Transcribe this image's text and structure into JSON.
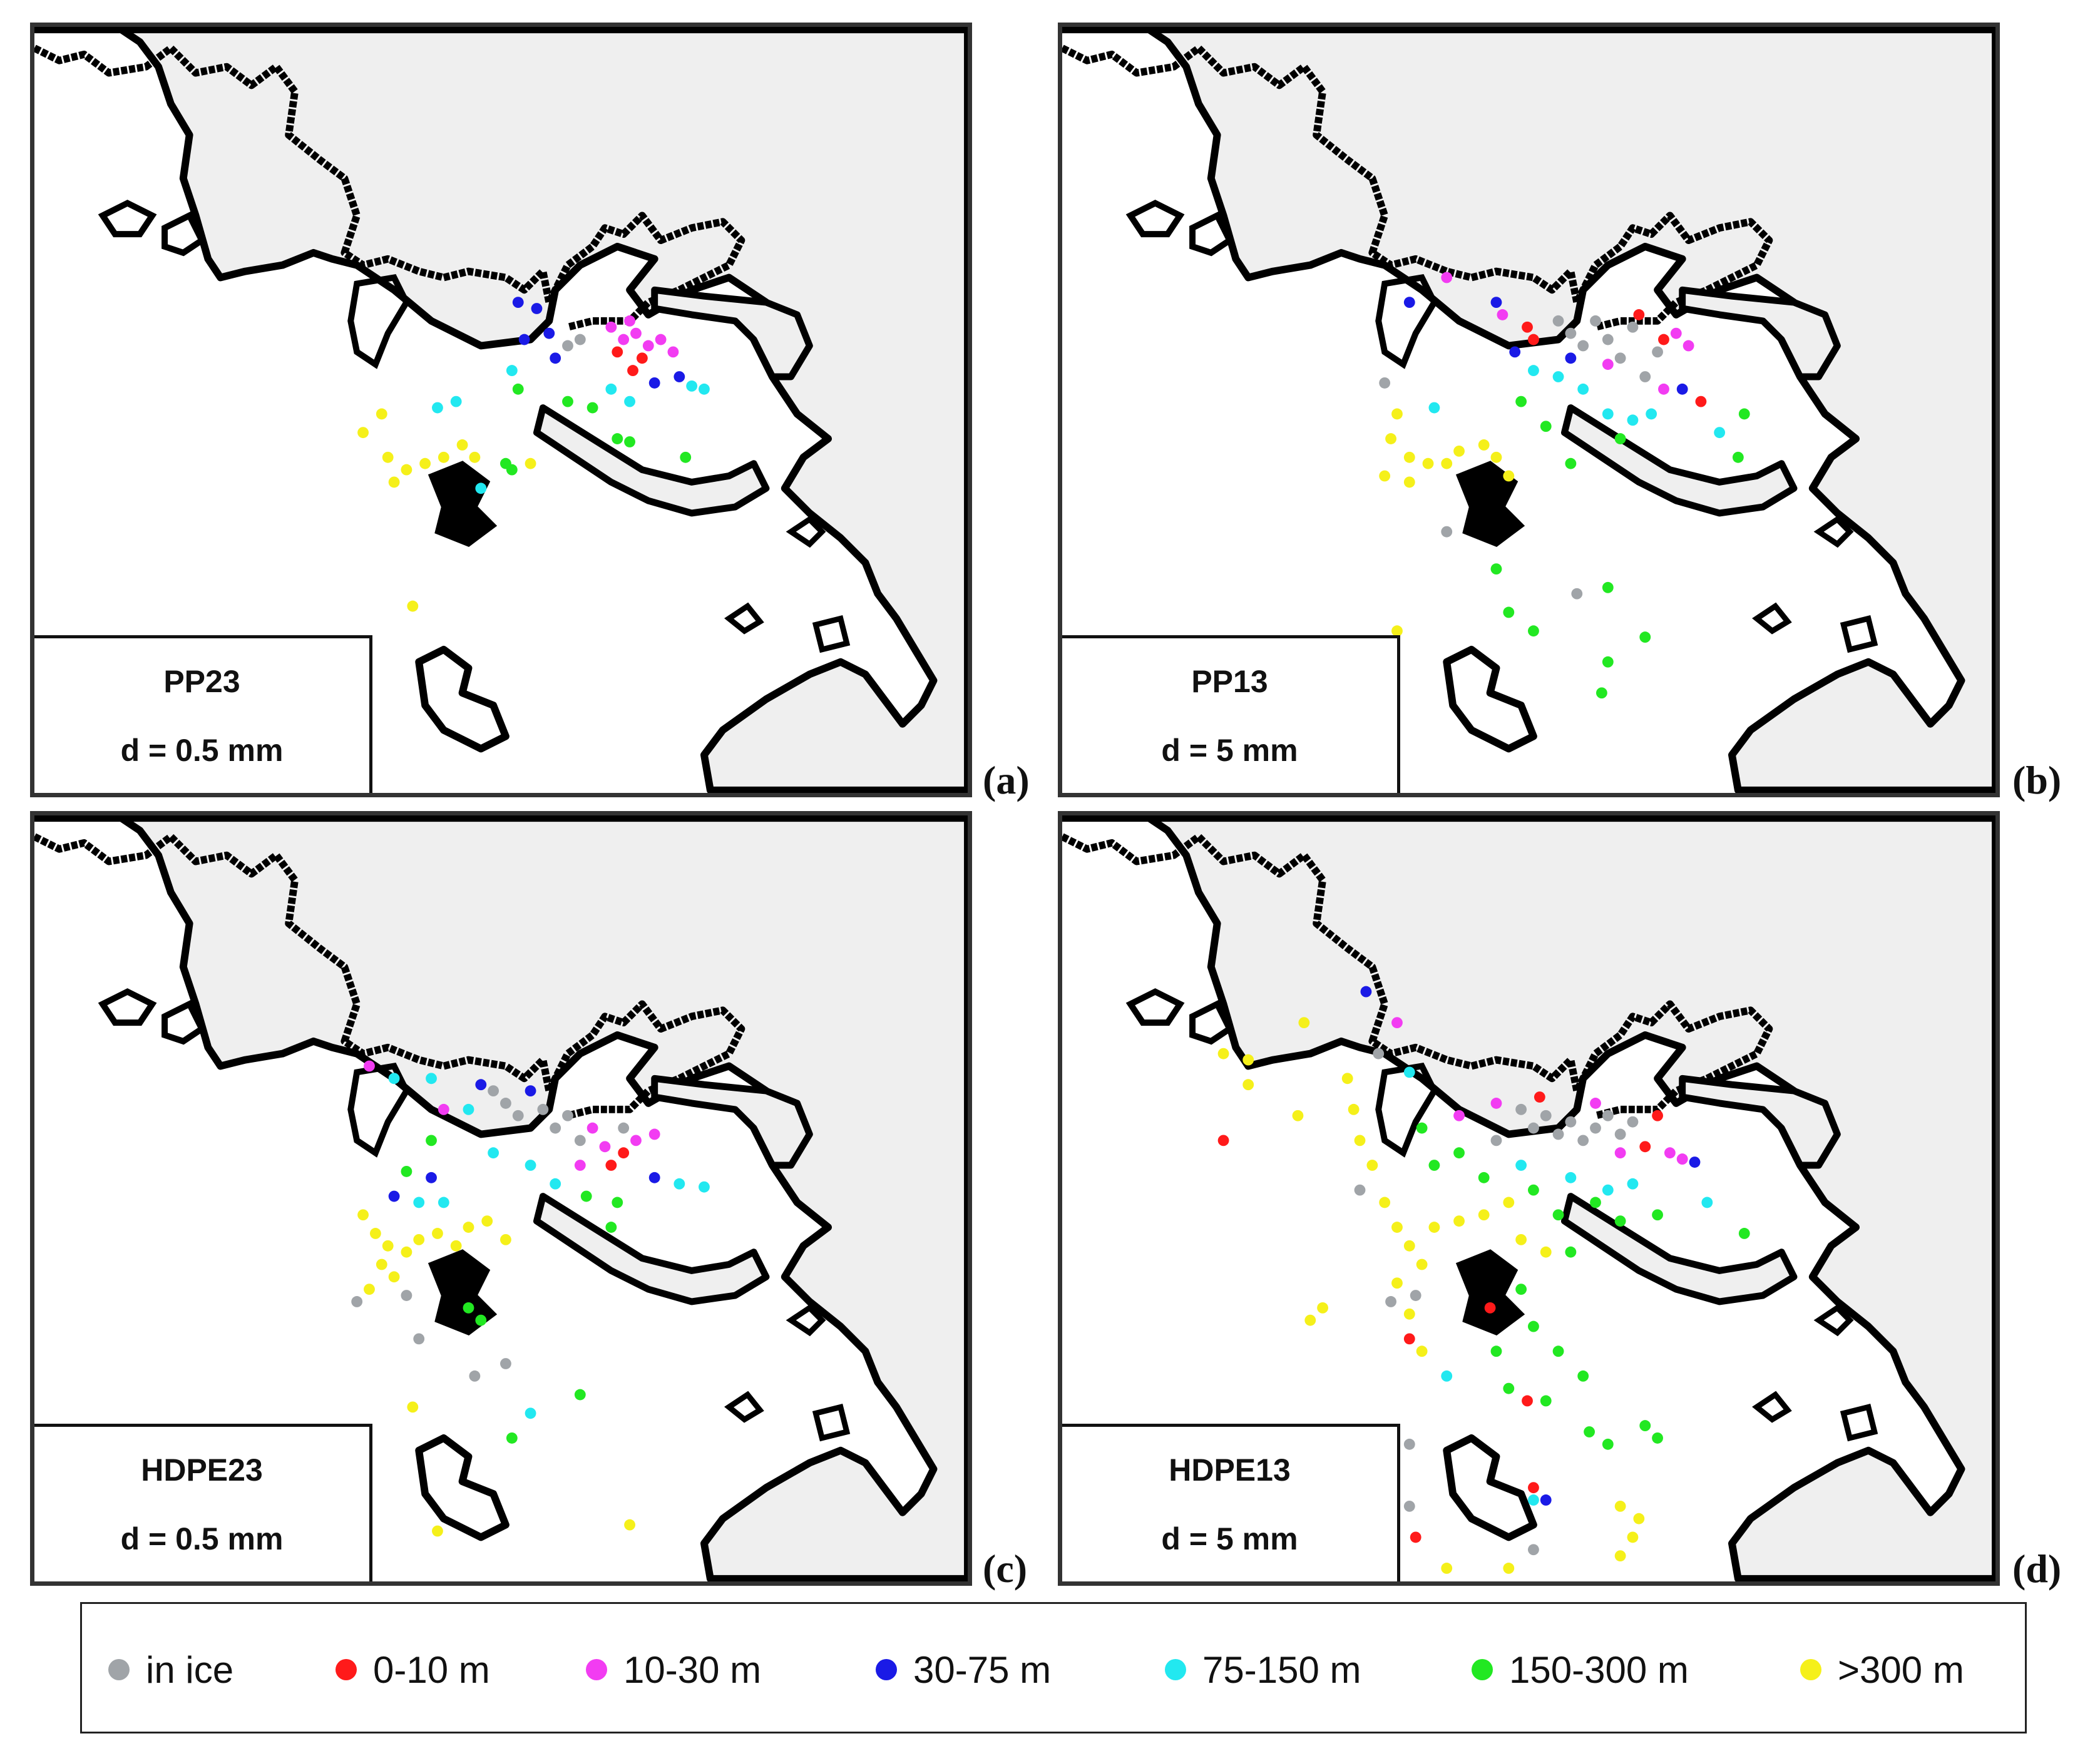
{
  "panels": [
    {
      "id": "a",
      "name": "PP23",
      "diameter": "d = 0.5 mm",
      "label": "(a)"
    },
    {
      "id": "b",
      "name": "PP13",
      "diameter": "d = 5 mm",
      "label": "(b)"
    },
    {
      "id": "c",
      "name": "HDPE23",
      "diameter": "d = 0.5 mm",
      "label": "(c)"
    },
    {
      "id": "d",
      "name": "HDPE13",
      "diameter": "d = 5 mm",
      "label": "(d)"
    }
  ],
  "legend": [
    {
      "label": "in ice",
      "color": "#a0a4a8"
    },
    {
      "label": "0-10 m",
      "color": "#ff1a1a"
    },
    {
      "label": "10-30 m",
      "color": "#f23cf2"
    },
    {
      "label": "30-75 m",
      "color": "#1a1ae6"
    },
    {
      "label": "75-150 m",
      "color": "#22e8f0"
    },
    {
      "label": "150-300 m",
      "color": "#22e822"
    },
    {
      "label": ">300 m",
      "color": "#f5f01a"
    }
  ]
}
